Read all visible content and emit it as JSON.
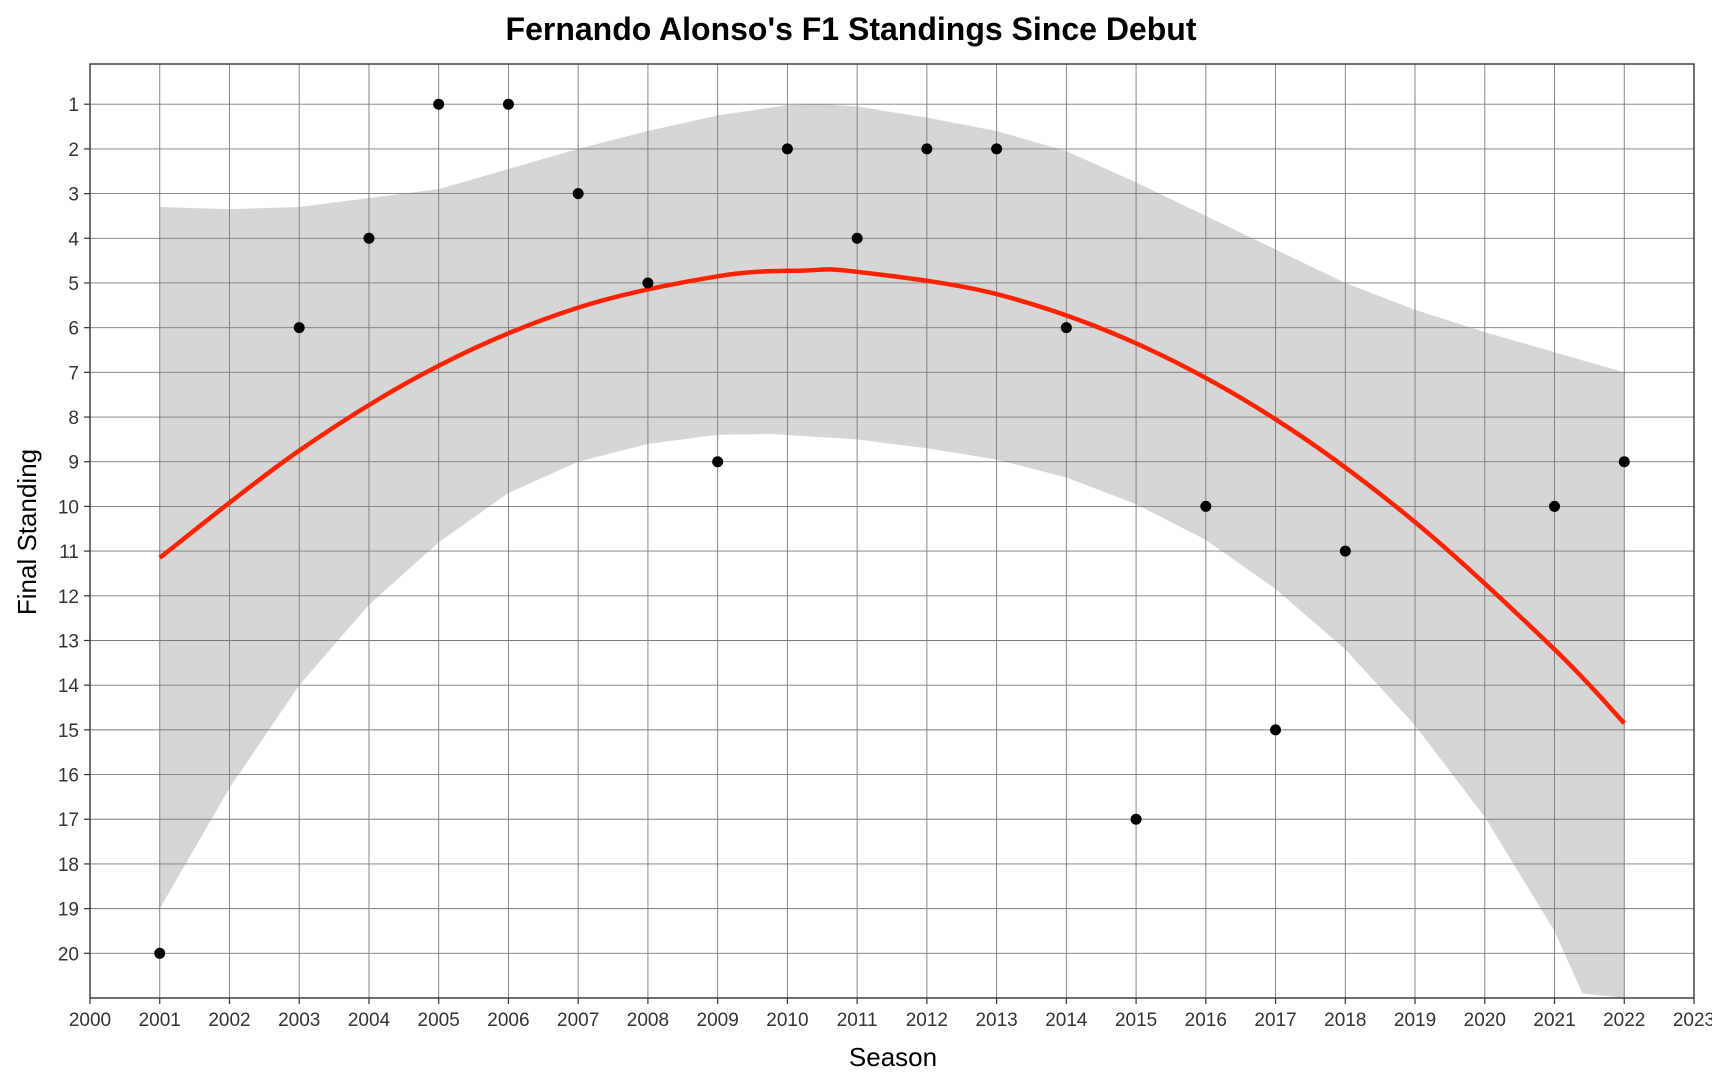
{
  "chart_data": {
    "type": "scatter",
    "title": "Fernando Alonso's F1 Standings Since Debut",
    "xlabel": "Season",
    "ylabel": "Final Standing",
    "xlim": [
      2000,
      2023
    ],
    "ylim": [
      21,
      0.1
    ],
    "y_reversed": true,
    "grid": true,
    "x_ticks": [
      2000,
      2001,
      2002,
      2003,
      2004,
      2005,
      2006,
      2007,
      2008,
      2009,
      2010,
      2011,
      2012,
      2013,
      2014,
      2015,
      2016,
      2017,
      2018,
      2019,
      2020,
      2021,
      2022,
      2023
    ],
    "x_tick_labels": [
      "2000",
      "2001",
      "2002",
      "2003",
      "2004",
      "2005",
      "2006",
      "2007",
      "2008",
      "2009",
      "2010",
      "2011",
      "2012",
      "2013",
      "2014",
      "2015",
      "2016",
      "2017",
      "2018",
      "2019",
      "2020",
      "2021",
      "2022",
      "2023"
    ],
    "y_ticks": [
      1,
      2,
      3,
      4,
      5,
      6,
      7,
      8,
      9,
      10,
      11,
      12,
      13,
      14,
      15,
      16,
      17,
      18,
      19,
      20
    ],
    "y_tick_labels": [
      "1",
      "2",
      "3",
      "4",
      "5",
      "6",
      "7",
      "8",
      "9",
      "10",
      "11",
      "12",
      "13",
      "14",
      "15",
      "16",
      "17",
      "18",
      "19",
      "20"
    ],
    "points": {
      "x": [
        2001,
        2003,
        2004,
        2005,
        2006,
        2007,
        2008,
        2009,
        2010,
        2011,
        2012,
        2013,
        2014,
        2015,
        2016,
        2017,
        2018,
        2021,
        2022
      ],
      "y": [
        20,
        6,
        4,
        1,
        1,
        3,
        5,
        9,
        2,
        4,
        2,
        2,
        6,
        17,
        10,
        15,
        11,
        10,
        9
      ]
    },
    "trend": {
      "method": "quadratic smooth",
      "x_range": [
        2001,
        2022
      ],
      "ymin_y_range": [
        -1,
        21
      ],
      "fit_x": [
        2001,
        2003,
        2005,
        2007,
        2009,
        2010.25,
        2011,
        2013,
        2015,
        2017,
        2019,
        2021,
        2022
      ],
      "fit_y": [
        11.15,
        8.75,
        6.85,
        5.55,
        4.85,
        4.72,
        4.75,
        5.25,
        6.35,
        8.05,
        10.35,
        13.2,
        14.85
      ],
      "band_upper_x": [
        2001,
        2002,
        2003,
        2005,
        2007,
        2008,
        2009,
        2010,
        2010.5,
        2011,
        2012,
        2013,
        2014,
        2015,
        2016,
        2017,
        2018,
        2019,
        2020,
        2021,
        2022
      ],
      "band_upper_y": [
        3.3,
        3.35,
        3.3,
        2.9,
        2.0,
        1.6,
        1.25,
        1.02,
        1.0,
        1.05,
        1.3,
        1.6,
        2.05,
        2.75,
        3.5,
        4.25,
        5.0,
        5.6,
        6.1,
        6.55,
        7.0
      ],
      "band_lower_x": [
        2001,
        2002,
        2003,
        2004,
        2005,
        2006,
        2007,
        2008,
        2009,
        2009.75,
        2011,
        2012,
        2013,
        2014,
        2015,
        2016,
        2017,
        2018,
        2019,
        2020,
        2021,
        2021.4
      ],
      "band_lower_y": [
        19.0,
        16.3,
        14.0,
        12.2,
        10.8,
        9.7,
        9.0,
        8.6,
        8.4,
        8.38,
        8.5,
        8.7,
        8.95,
        9.35,
        9.95,
        10.75,
        11.85,
        13.2,
        14.9,
        16.95,
        19.5,
        20.9
      ],
      "band_bottom_y": 21
    },
    "colors": {
      "point": "#000000",
      "trend_line": "#ff2200",
      "band": "#d6d6d6",
      "grid": "#7a7a7a",
      "axis": "#333333"
    }
  }
}
